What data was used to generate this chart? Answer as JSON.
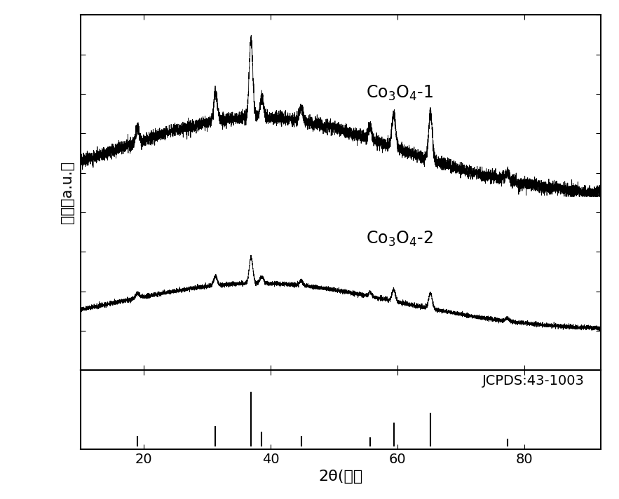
{
  "xlabel": "2θ(度）",
  "ylabel": "强度（a.u.）",
  "xlim": [
    10,
    92
  ],
  "background_color": "#ffffff",
  "jcpds_label": "JCPDS:43-1003",
  "label1": "Co$_3$O$_4$-1",
  "label2": "Co$_3$O$_4$-2",
  "jcpds_peaks": [
    19.0,
    31.3,
    36.9,
    38.6,
    44.8,
    55.7,
    59.4,
    65.2,
    77.3
  ],
  "jcpds_heights": [
    0.18,
    0.35,
    1.0,
    0.25,
    0.18,
    0.15,
    0.42,
    0.6,
    0.12
  ],
  "line_color": "#000000"
}
